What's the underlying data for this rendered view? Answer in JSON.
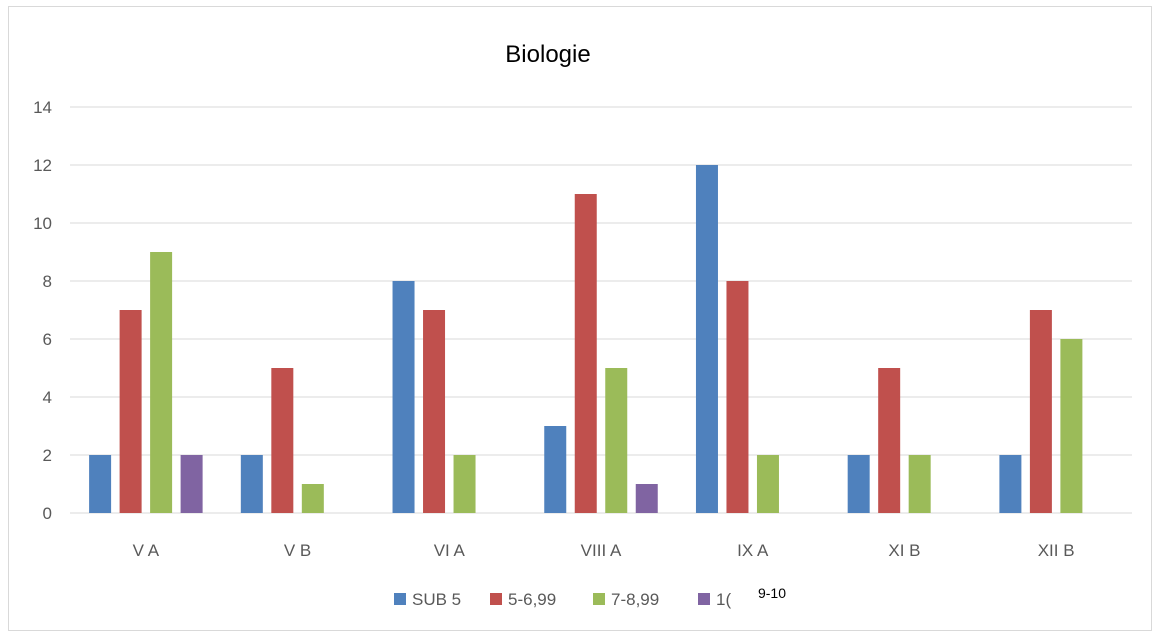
{
  "chart_data": {
    "type": "bar",
    "title": "Biologie",
    "xlabel": "",
    "ylabel": "",
    "ylim": [
      0,
      14
    ],
    "yticks": [
      0,
      2,
      4,
      6,
      8,
      10,
      12,
      14
    ],
    "grid": true,
    "legend_position": "bottom",
    "categories": [
      "V A",
      "V B",
      "VI A",
      "VIII A",
      "IX A",
      "XI B",
      "XII B"
    ],
    "series": [
      {
        "name": "SUB 5",
        "color": "#4f81bd",
        "values": [
          2,
          2,
          8,
          3,
          12,
          2,
          2
        ]
      },
      {
        "name": "5-6,99",
        "color": "#c0504d",
        "values": [
          7,
          5,
          7,
          11,
          8,
          5,
          7
        ]
      },
      {
        "name": "7-8,99",
        "color": "#9bbb59",
        "values": [
          9,
          1,
          2,
          5,
          2,
          2,
          6
        ]
      },
      {
        "name": "10",
        "color": "#8064a2",
        "values": [
          2,
          0,
          0,
          1,
          0,
          0,
          0
        ]
      }
    ],
    "legend_display": [
      "SUB 5",
      "5-6,99",
      "7-8,99",
      "1("
    ],
    "overlay_label": "9-10"
  }
}
